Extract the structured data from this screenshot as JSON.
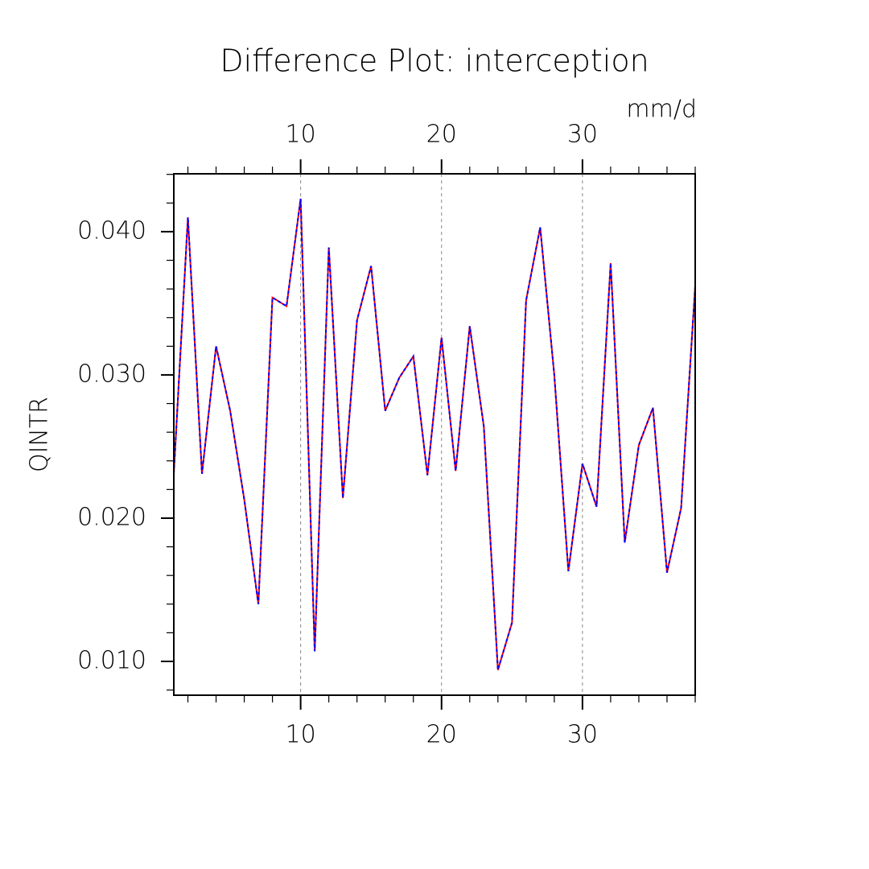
{
  "chart_data": {
    "type": "line",
    "title": "Difference Plot: interception",
    "units": "mm/d",
    "ylabel": "QINTR",
    "x": [
      1,
      2,
      3,
      4,
      5,
      6,
      7,
      8,
      9,
      10,
      11,
      12,
      13,
      14,
      15,
      16,
      17,
      18,
      19,
      20,
      21,
      22,
      23,
      24,
      25,
      26,
      27,
      28,
      29,
      30,
      31,
      32,
      33,
      34,
      35,
      36,
      37,
      38
    ],
    "series": [
      {
        "color": "#ff0000",
        "style": "solid",
        "values": [
          0.0231,
          0.041,
          0.0231,
          0.032,
          0.0275,
          0.0213,
          0.014,
          0.0354,
          0.0348,
          0.0423,
          0.0107,
          0.0389,
          0.0214,
          0.0338,
          0.0376,
          0.0275,
          0.0298,
          0.0313,
          0.023,
          0.0326,
          0.0233,
          0.0334,
          0.0264,
          0.0094,
          0.0127,
          0.0352,
          0.0403,
          0.03,
          0.0163,
          0.0238,
          0.0208,
          0.0378,
          0.0183,
          0.0251,
          0.0277,
          0.0162,
          0.0207,
          0.0362
        ]
      },
      {
        "color": "#0000ff",
        "style": "dashed",
        "values": [
          0.0231,
          0.041,
          0.0231,
          0.032,
          0.0275,
          0.0213,
          0.014,
          0.0354,
          0.0348,
          0.0423,
          0.0107,
          0.0389,
          0.0214,
          0.0338,
          0.0376,
          0.0275,
          0.0298,
          0.0313,
          0.023,
          0.0326,
          0.0233,
          0.0334,
          0.0264,
          0.0094,
          0.0127,
          0.0352,
          0.0403,
          0.03,
          0.0163,
          0.0238,
          0.0208,
          0.0378,
          0.0183,
          0.0251,
          0.0277,
          0.0162,
          0.0207,
          0.0362
        ]
      }
    ],
    "xlim": [
      1,
      38
    ],
    "xticks": [
      10,
      20,
      30
    ],
    "xtick_color": "#ff0000",
    "top_xticks": [
      10,
      20,
      30
    ],
    "top_xtick_color": "#0000ff",
    "xminorticks": [
      2,
      4,
      6,
      8,
      12,
      14,
      16,
      18,
      22,
      24,
      26,
      28,
      32,
      34,
      36,
      38
    ],
    "ylim": [
      0.00764,
      0.04404
    ],
    "yticks": [
      {
        "value": 0.01,
        "label": "0.010"
      },
      {
        "value": 0.02,
        "label": "0.020"
      },
      {
        "value": 0.03,
        "label": "0.030"
      },
      {
        "value": 0.04,
        "label": "0.040"
      }
    ],
    "yminorticks": [
      0.008,
      0.012,
      0.014,
      0.016,
      0.018,
      0.022,
      0.024,
      0.026,
      0.028,
      0.032,
      0.034,
      0.036,
      0.038,
      0.042,
      0.044
    ],
    "xgrid": true
  }
}
